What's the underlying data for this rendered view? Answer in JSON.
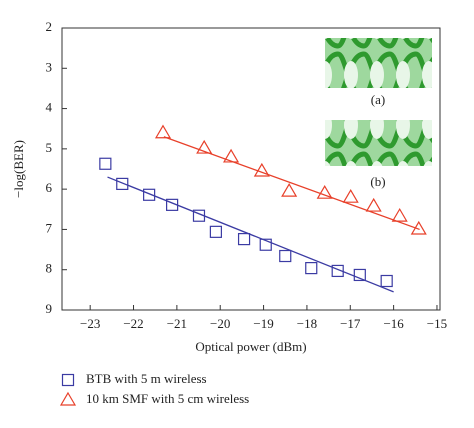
{
  "chart_data": {
    "type": "scatter",
    "x_label": "Optical power (dBm)",
    "y_label": "−log(BER)",
    "xlim": [
      -23.65,
      -14.93
    ],
    "ylim": [
      2,
      9
    ],
    "y_inverted": true,
    "xticks": [
      {
        "value": -23,
        "label": "−23"
      },
      {
        "value": -22,
        "label": "−22"
      },
      {
        "value": -21,
        "label": "−21"
      },
      {
        "value": -20,
        "label": "−20"
      },
      {
        "value": -19,
        "label": "−19"
      },
      {
        "value": -18,
        "label": "−18"
      },
      {
        "value": -17,
        "label": "−17"
      },
      {
        "value": -16,
        "label": "−16"
      },
      {
        "value": -15,
        "label": "−15"
      }
    ],
    "yticks": [
      2,
      3,
      4,
      5,
      6,
      7,
      8,
      9
    ],
    "series": [
      {
        "name": "BTB with 5 m wireless",
        "marker": "square",
        "color": "#3b3ba3",
        "x": [
          -22.65,
          -22.26,
          -21.64,
          -21.11,
          -20.49,
          -20.1,
          -19.45,
          -18.95,
          -18.5,
          -17.9,
          -17.29,
          -16.78,
          -16.16
        ],
        "values": [
          5.37,
          5.87,
          6.14,
          6.39,
          6.66,
          7.06,
          7.24,
          7.38,
          7.66,
          7.96,
          8.03,
          8.13,
          8.28
        ],
        "fit": {
          "x": [
            -22.6,
            -16.0
          ],
          "values": [
            5.7,
            8.55
          ]
        }
      },
      {
        "name": "10 km SMF with 5 cm wireless",
        "marker": "triangle",
        "color": "#e8402a",
        "x": [
          -21.32,
          -20.37,
          -19.75,
          -19.04,
          -18.41,
          -17.59,
          -16.99,
          -16.46,
          -15.86,
          -15.42
        ],
        "values": [
          4.6,
          4.98,
          5.2,
          5.55,
          6.05,
          6.1,
          6.2,
          6.42,
          6.67,
          6.99
        ],
        "fit": {
          "x": [
            -21.3,
            -15.4
          ],
          "values": [
            4.7,
            7.0
          ]
        }
      }
    ],
    "insets": [
      {
        "label": "(a)"
      },
      {
        "label": "(b)"
      }
    ]
  }
}
